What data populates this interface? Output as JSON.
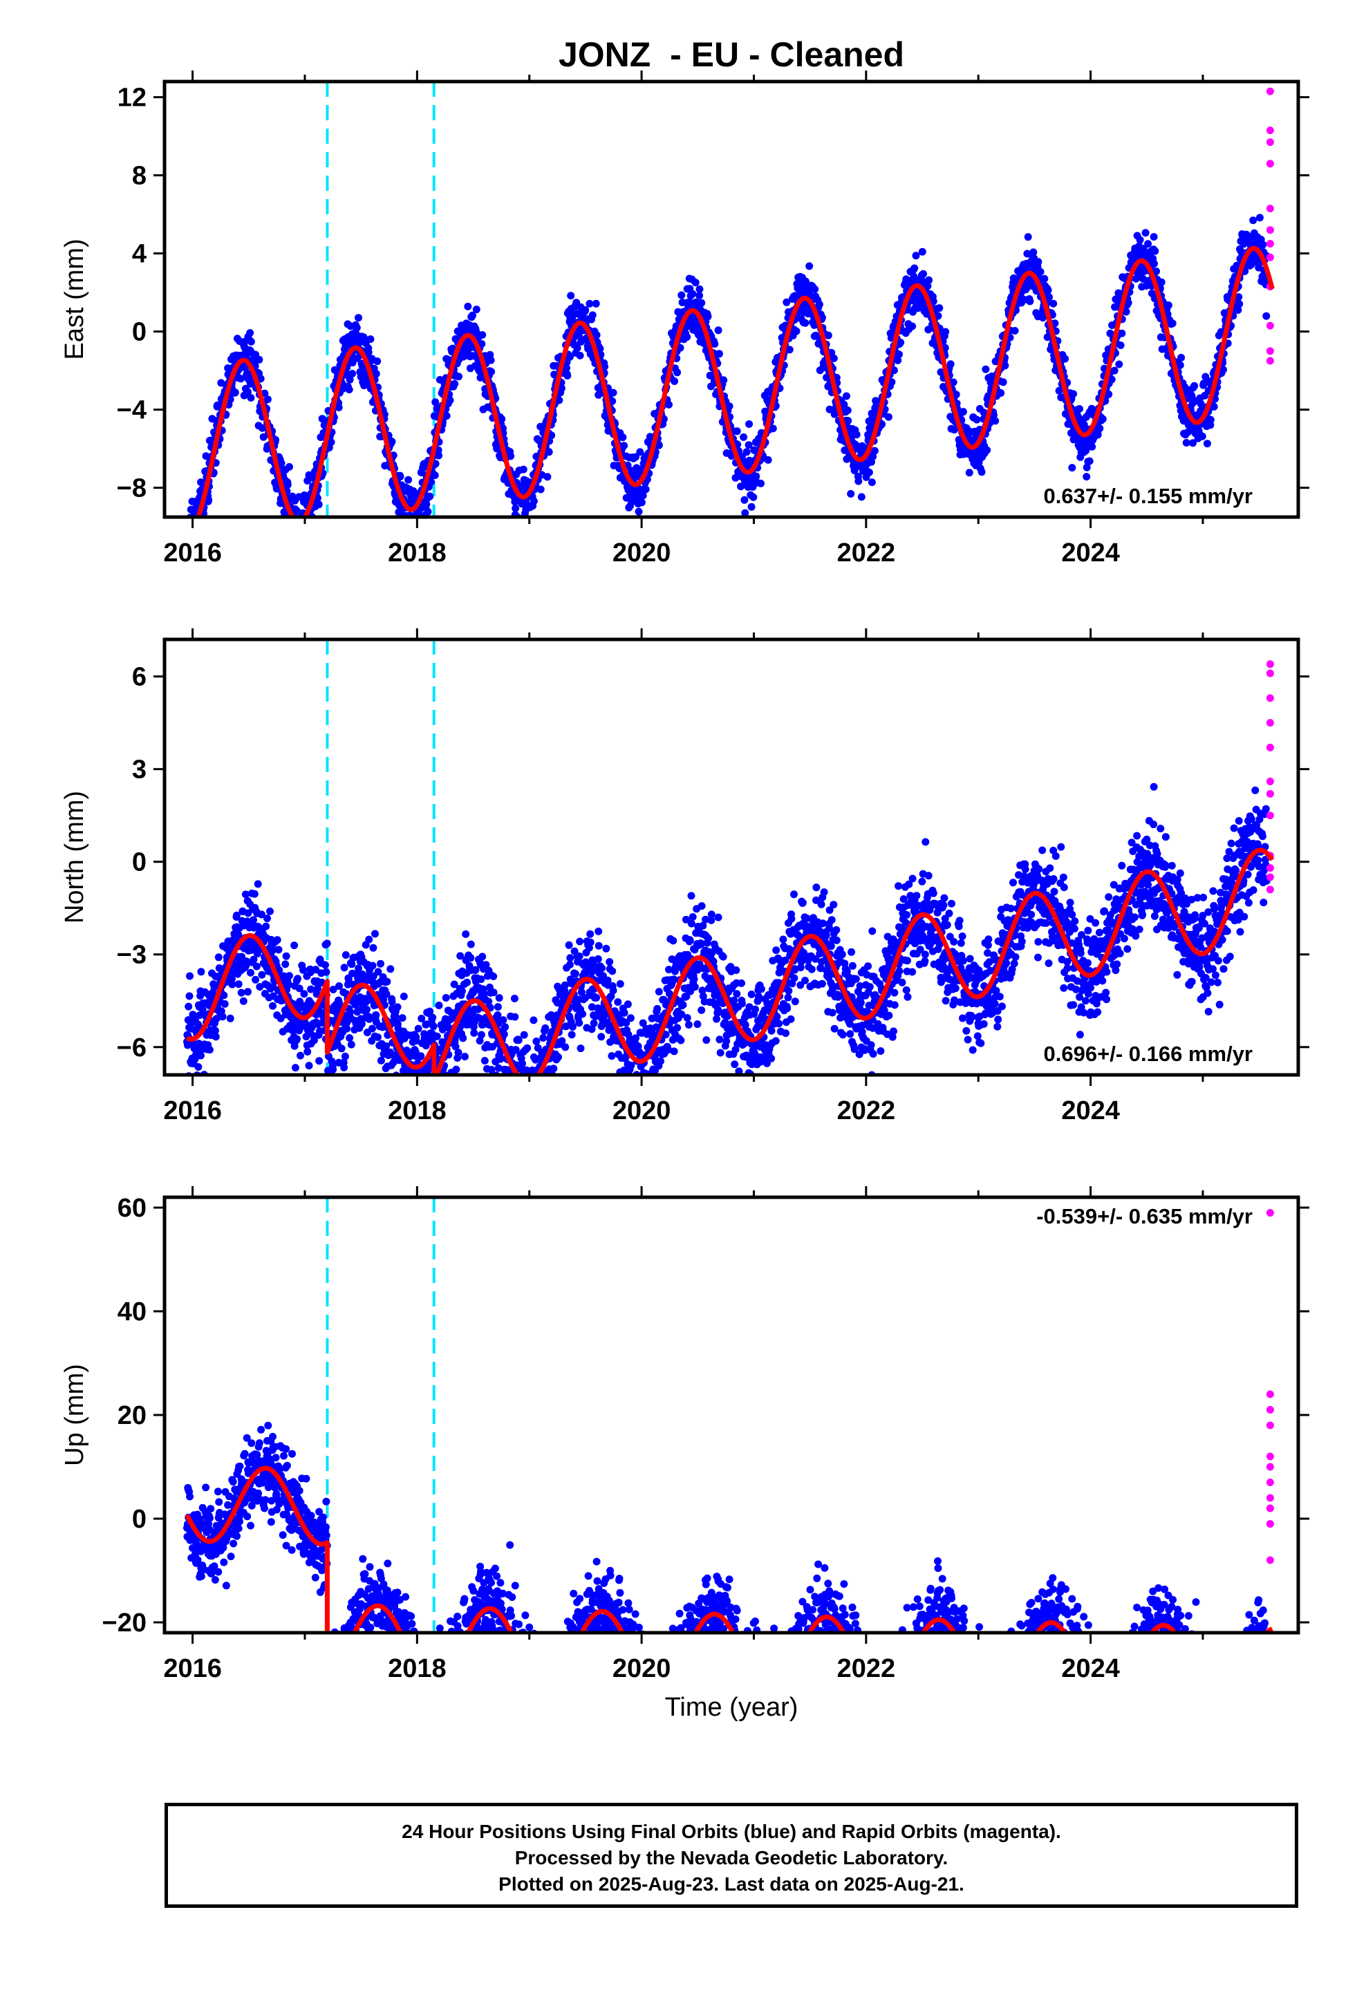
{
  "title": "JONZ  - EU - Cleaned",
  "xlabel": "Time (year)",
  "caption": {
    "line1": "24 Hour Positions Using Final Orbits (blue) and Rapid Orbits (magenta).",
    "line2": "Processed by the Nevada Geodetic Laboratory.",
    "line3": "Plotted on 2025-Aug-23. Last data on 2025-Aug-21."
  },
  "colors": {
    "final_points": "#0000ff",
    "rapid_points": "#ff00ff",
    "model_line": "#ff0000",
    "event_lines": "#00e5ff"
  },
  "chart_data": [
    {
      "type": "scatter",
      "component": "east",
      "ylabel": "East (mm)",
      "rate_text": "0.637+/- 0.155 mm/yr",
      "xlim": [
        2015.75,
        2025.85
      ],
      "ylim": [
        -9.5,
        12.8
      ],
      "xticks": [
        2016,
        2018,
        2020,
        2022,
        2024
      ],
      "yticks": [
        -8,
        -4,
        0,
        4,
        8,
        12
      ],
      "event_lines_x": [
        2017.2,
        2018.15
      ],
      "model": {
        "start": 2015.95,
        "end": 2025.62,
        "offset": -3.0,
        "trend": 0.637,
        "t0": 2020.8,
        "amp": 4.3,
        "phase_year": 2016.45,
        "steps": []
      },
      "final_points": {
        "start": 2015.95,
        "end": 2025.57,
        "noise": 0.75
      },
      "rapid_points": {
        "x": [
          2025.6,
          2025.6,
          2025.6,
          2025.6,
          2025.6,
          2025.6,
          2025.6,
          2025.6,
          2025.6,
          2025.6,
          2025.6,
          2025.6
        ],
        "y": [
          12.3,
          10.3,
          9.7,
          8.6,
          6.3,
          5.2,
          4.5,
          3.8,
          2.3,
          0.3,
          -1.0,
          -1.5
        ]
      }
    },
    {
      "type": "scatter",
      "component": "north",
      "ylabel": "North (mm)",
      "rate_text": "0.696+/- 0.166 mm/yr",
      "xlim": [
        2015.75,
        2025.85
      ],
      "ylim": [
        -6.9,
        7.2
      ],
      "xticks": [
        2016,
        2018,
        2020,
        2022,
        2024
      ],
      "yticks": [
        -6,
        -3,
        0,
        3,
        6
      ],
      "event_lines_x": [
        2017.2,
        2018.15
      ],
      "model": {
        "start": 2015.95,
        "end": 2025.62,
        "offset": -0.9,
        "trend": 0.696,
        "t0": 2020.8,
        "amp": 1.5,
        "phase_year": 2016.5,
        "steps": [
          {
            "x": 2017.2,
            "dy": -2.3
          },
          {
            "x": 2018.15,
            "dy": -1.2
          }
        ]
      },
      "final_points": {
        "start": 2015.95,
        "end": 2025.57,
        "noise": 0.8
      },
      "rapid_points": {
        "x": [
          2025.6,
          2025.6,
          2025.6,
          2025.6,
          2025.6,
          2025.6,
          2025.6,
          2025.6,
          2025.6,
          2025.6,
          2025.6,
          2025.6
        ],
        "y": [
          6.4,
          6.1,
          5.3,
          4.5,
          3.7,
          2.6,
          2.2,
          1.5,
          0.2,
          -0.2,
          -0.5,
          -0.9
        ]
      }
    },
    {
      "type": "scatter",
      "component": "up",
      "ylabel": "Up (mm)",
      "rate_text": "-0.539+/- 0.635 mm/yr",
      "xlim": [
        2015.75,
        2025.85
      ],
      "ylim": [
        -22,
        62
      ],
      "xticks": [
        2016,
        2018,
        2020,
        2022,
        2024
      ],
      "yticks": [
        -20,
        0,
        20,
        40,
        60
      ],
      "event_lines_x": [
        2017.2,
        2018.15
      ],
      "model": {
        "start": 2015.95,
        "end": 2025.62,
        "offset": 0.3,
        "trend": -0.539,
        "t0": 2020.8,
        "amp": 7.2,
        "phase_year": 2016.65,
        "steps": [
          {
            "x": 2017.2,
            "dy": -26.0
          }
        ]
      },
      "final_points": {
        "start": 2015.95,
        "end": 2025.57,
        "noise": 4.0
      },
      "rapid_points": {
        "x": [
          2025.6,
          2025.6,
          2025.6,
          2025.6,
          2025.6,
          2025.6,
          2025.6,
          2025.6,
          2025.6,
          2025.6,
          2025.6
        ],
        "y": [
          59,
          24,
          21,
          18,
          12,
          10,
          7,
          4,
          2,
          -1,
          -8
        ]
      }
    }
  ]
}
